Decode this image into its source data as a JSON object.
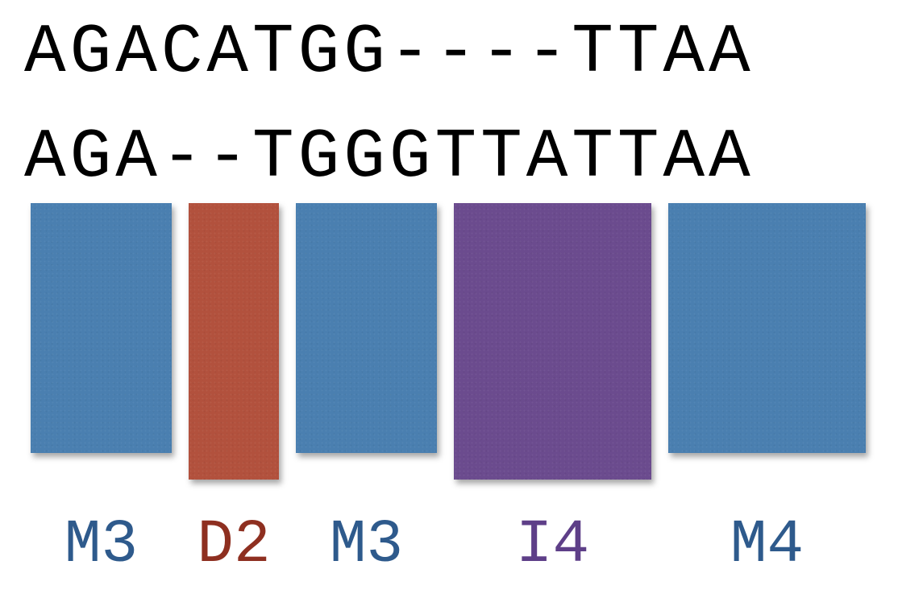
{
  "alignment": {
    "sequence_top": "AGACATGG----TTAA",
    "sequence_bottom": "AGA--TGGGTTATTAA"
  },
  "operations": [
    {
      "label": "M3",
      "color": "#4a7fb0",
      "text_color": "#2e5a8c"
    },
    {
      "label": "D2",
      "color": "#b2513d",
      "text_color": "#8e2f20"
    },
    {
      "label": "M3",
      "color": "#4a7fb0",
      "text_color": "#2e5a8c"
    },
    {
      "label": "I4",
      "color": "#6b4b8e",
      "text_color": "#5e3f88"
    },
    {
      "label": "M4",
      "color": "#4a7fb0",
      "text_color": "#2e5a8c"
    }
  ]
}
